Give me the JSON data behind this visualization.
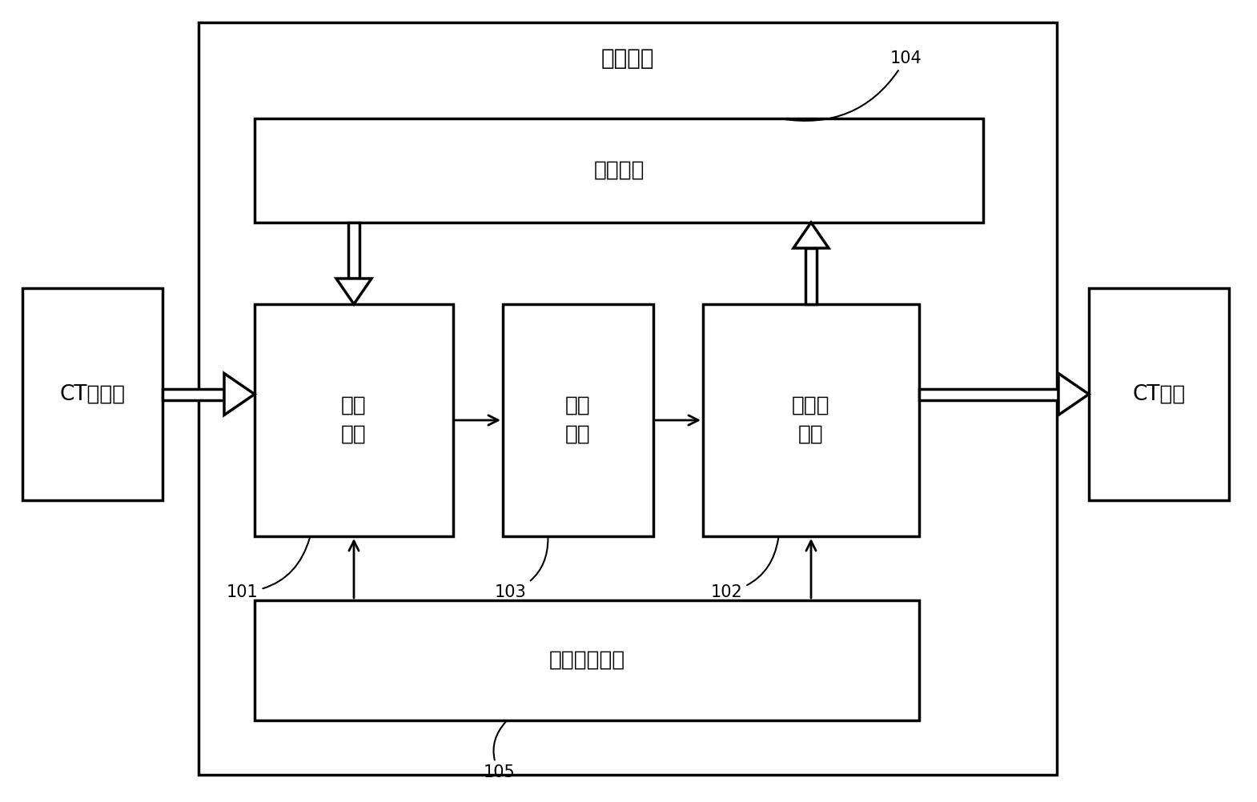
{
  "bg_color": "#ffffff",
  "border_color": "#000000",
  "title": "跌代重建",
  "ct_scanner_label": "CT扫描器",
  "ct_image_label": "CT图像",
  "update_module_label": "更新模块",
  "projection_module_label": "投影\n模块",
  "compare_module_label": "比较\n模块",
  "backprojection_module_label": "反投影\n模块",
  "weight_module_label": "附加权重模块",
  "label_101": "101",
  "label_102": "102",
  "label_103": "103",
  "label_104": "104",
  "label_105": "105",
  "font_size_title": 20,
  "font_size_label": 19,
  "font_size_number": 15
}
